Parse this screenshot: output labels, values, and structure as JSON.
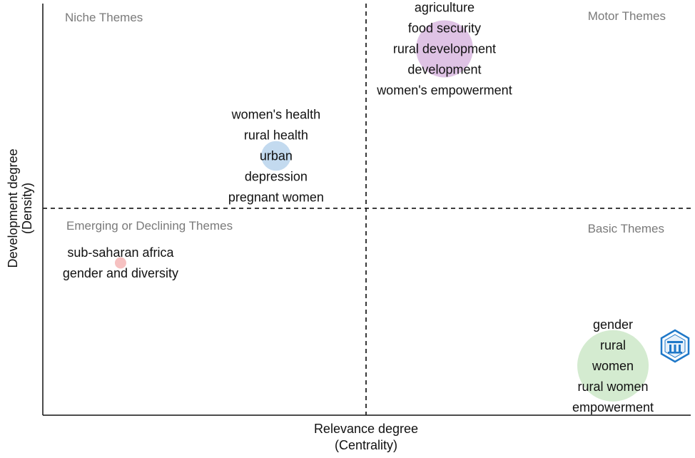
{
  "chart_data": {
    "type": "scatter",
    "title": "",
    "xlabel": [
      "Relevance degree",
      "(Centrality)"
    ],
    "ylabel": [
      "Development degree",
      "(Density)"
    ],
    "grid": false,
    "quadrants": [
      {
        "id": "niche",
        "label": "Niche Themes"
      },
      {
        "id": "motor",
        "label": "Motor Themes"
      },
      {
        "id": "emerging",
        "label": "Emerging or  Declining Themes"
      },
      {
        "id": "basic",
        "label": "Basic Themes"
      }
    ],
    "clusters": [
      {
        "id": "motor",
        "color": "#d9b8e0",
        "centrality": 0.62,
        "density": 0.89,
        "size": 1.0,
        "terms": [
          "agriculture",
          "food security",
          "rural development",
          "development",
          "women's empowerment"
        ]
      },
      {
        "id": "niche",
        "color": "#b9d3ec",
        "centrality": 0.36,
        "density": 0.63,
        "size": 0.52,
        "terms": [
          "women's health",
          "rural health",
          "urban",
          "depression",
          "pregnant women"
        ]
      },
      {
        "id": "emerging",
        "color": "#f4b6b6",
        "centrality": 0.12,
        "density": 0.37,
        "size": 0.2,
        "terms": [
          "sub-saharan africa",
          "gender and diversity"
        ]
      },
      {
        "id": "basic",
        "color": "#cde8c8",
        "centrality": 0.88,
        "density": 0.12,
        "size": 1.25,
        "terms": [
          "gender",
          "rural",
          "women",
          "rural women",
          "empowerment"
        ]
      }
    ]
  },
  "logo": {
    "name": "hexagon-logo-icon",
    "color": "#1f78c8"
  }
}
